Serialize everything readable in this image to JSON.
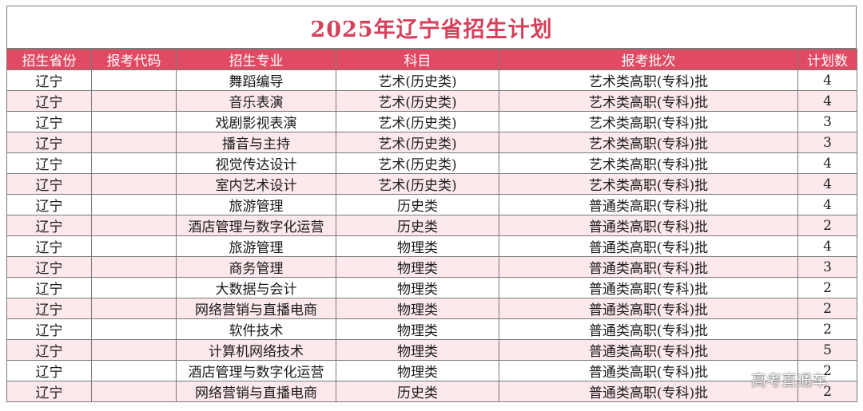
{
  "title": "2025年辽宁省招生计划",
  "headers": [
    "招生省份",
    "报考代码",
    "招生专业",
    "科目",
    "报考批次",
    "计划数"
  ],
  "rows": [
    [
      "辽宁",
      "",
      "舞蹈编导",
      "艺术(历史类)",
      "艺术类高职(专科)批",
      "4"
    ],
    [
      "辽宁",
      "",
      "音乐表演",
      "艺术(历史类)",
      "艺术类高职(专科)批",
      "4"
    ],
    [
      "辽宁",
      "",
      "戏剧影视表演",
      "艺术(历史类)",
      "艺术类高职(专科)批",
      "3"
    ],
    [
      "辽宁",
      "",
      "播音与主持",
      "艺术(历史类)",
      "艺术类高职(专科)批",
      "3"
    ],
    [
      "辽宁",
      "",
      "视觉传达设计",
      "艺术(历史类)",
      "艺术类高职(专科)批",
      "4"
    ],
    [
      "辽宁",
      "",
      "室内艺术设计",
      "艺术(历史类)",
      "艺术类高职(专科)批",
      "4"
    ],
    [
      "辽宁",
      "",
      "旅游管理",
      "历史类",
      "普通类高职(专科)批",
      "4"
    ],
    [
      "辽宁",
      "",
      "酒店管理与数字化运营",
      "历史类",
      "普通类高职(专科)批",
      "2"
    ],
    [
      "辽宁",
      "",
      "旅游管理",
      "物理类",
      "普通类高职(专科)批",
      "4"
    ],
    [
      "辽宁",
      "",
      "商务管理",
      "物理类",
      "普通类高职(专科)批",
      "3"
    ],
    [
      "辽宁",
      "",
      "大数据与会计",
      "物理类",
      "普通类高职(专科)批",
      "2"
    ],
    [
      "辽宁",
      "",
      "网络营销与直播电商",
      "物理类",
      "普通类高职(专科)批",
      "2"
    ],
    [
      "辽宁",
      "",
      "软件技术",
      "物理类",
      "普通类高职(专科)批",
      "2"
    ],
    [
      "辽宁",
      "",
      "计算机网络技术",
      "物理类",
      "普通类高职(专科)批",
      "5"
    ],
    [
      "辽宁",
      "",
      "酒店管理与数字化运营",
      "物理类",
      "普通类高职(专科)批",
      "2"
    ],
    [
      "辽宁",
      "",
      "网络营销与直播电商",
      "历史类",
      "普通类高职(专科)批",
      "2"
    ]
  ],
  "watermark": "高考直通车"
}
